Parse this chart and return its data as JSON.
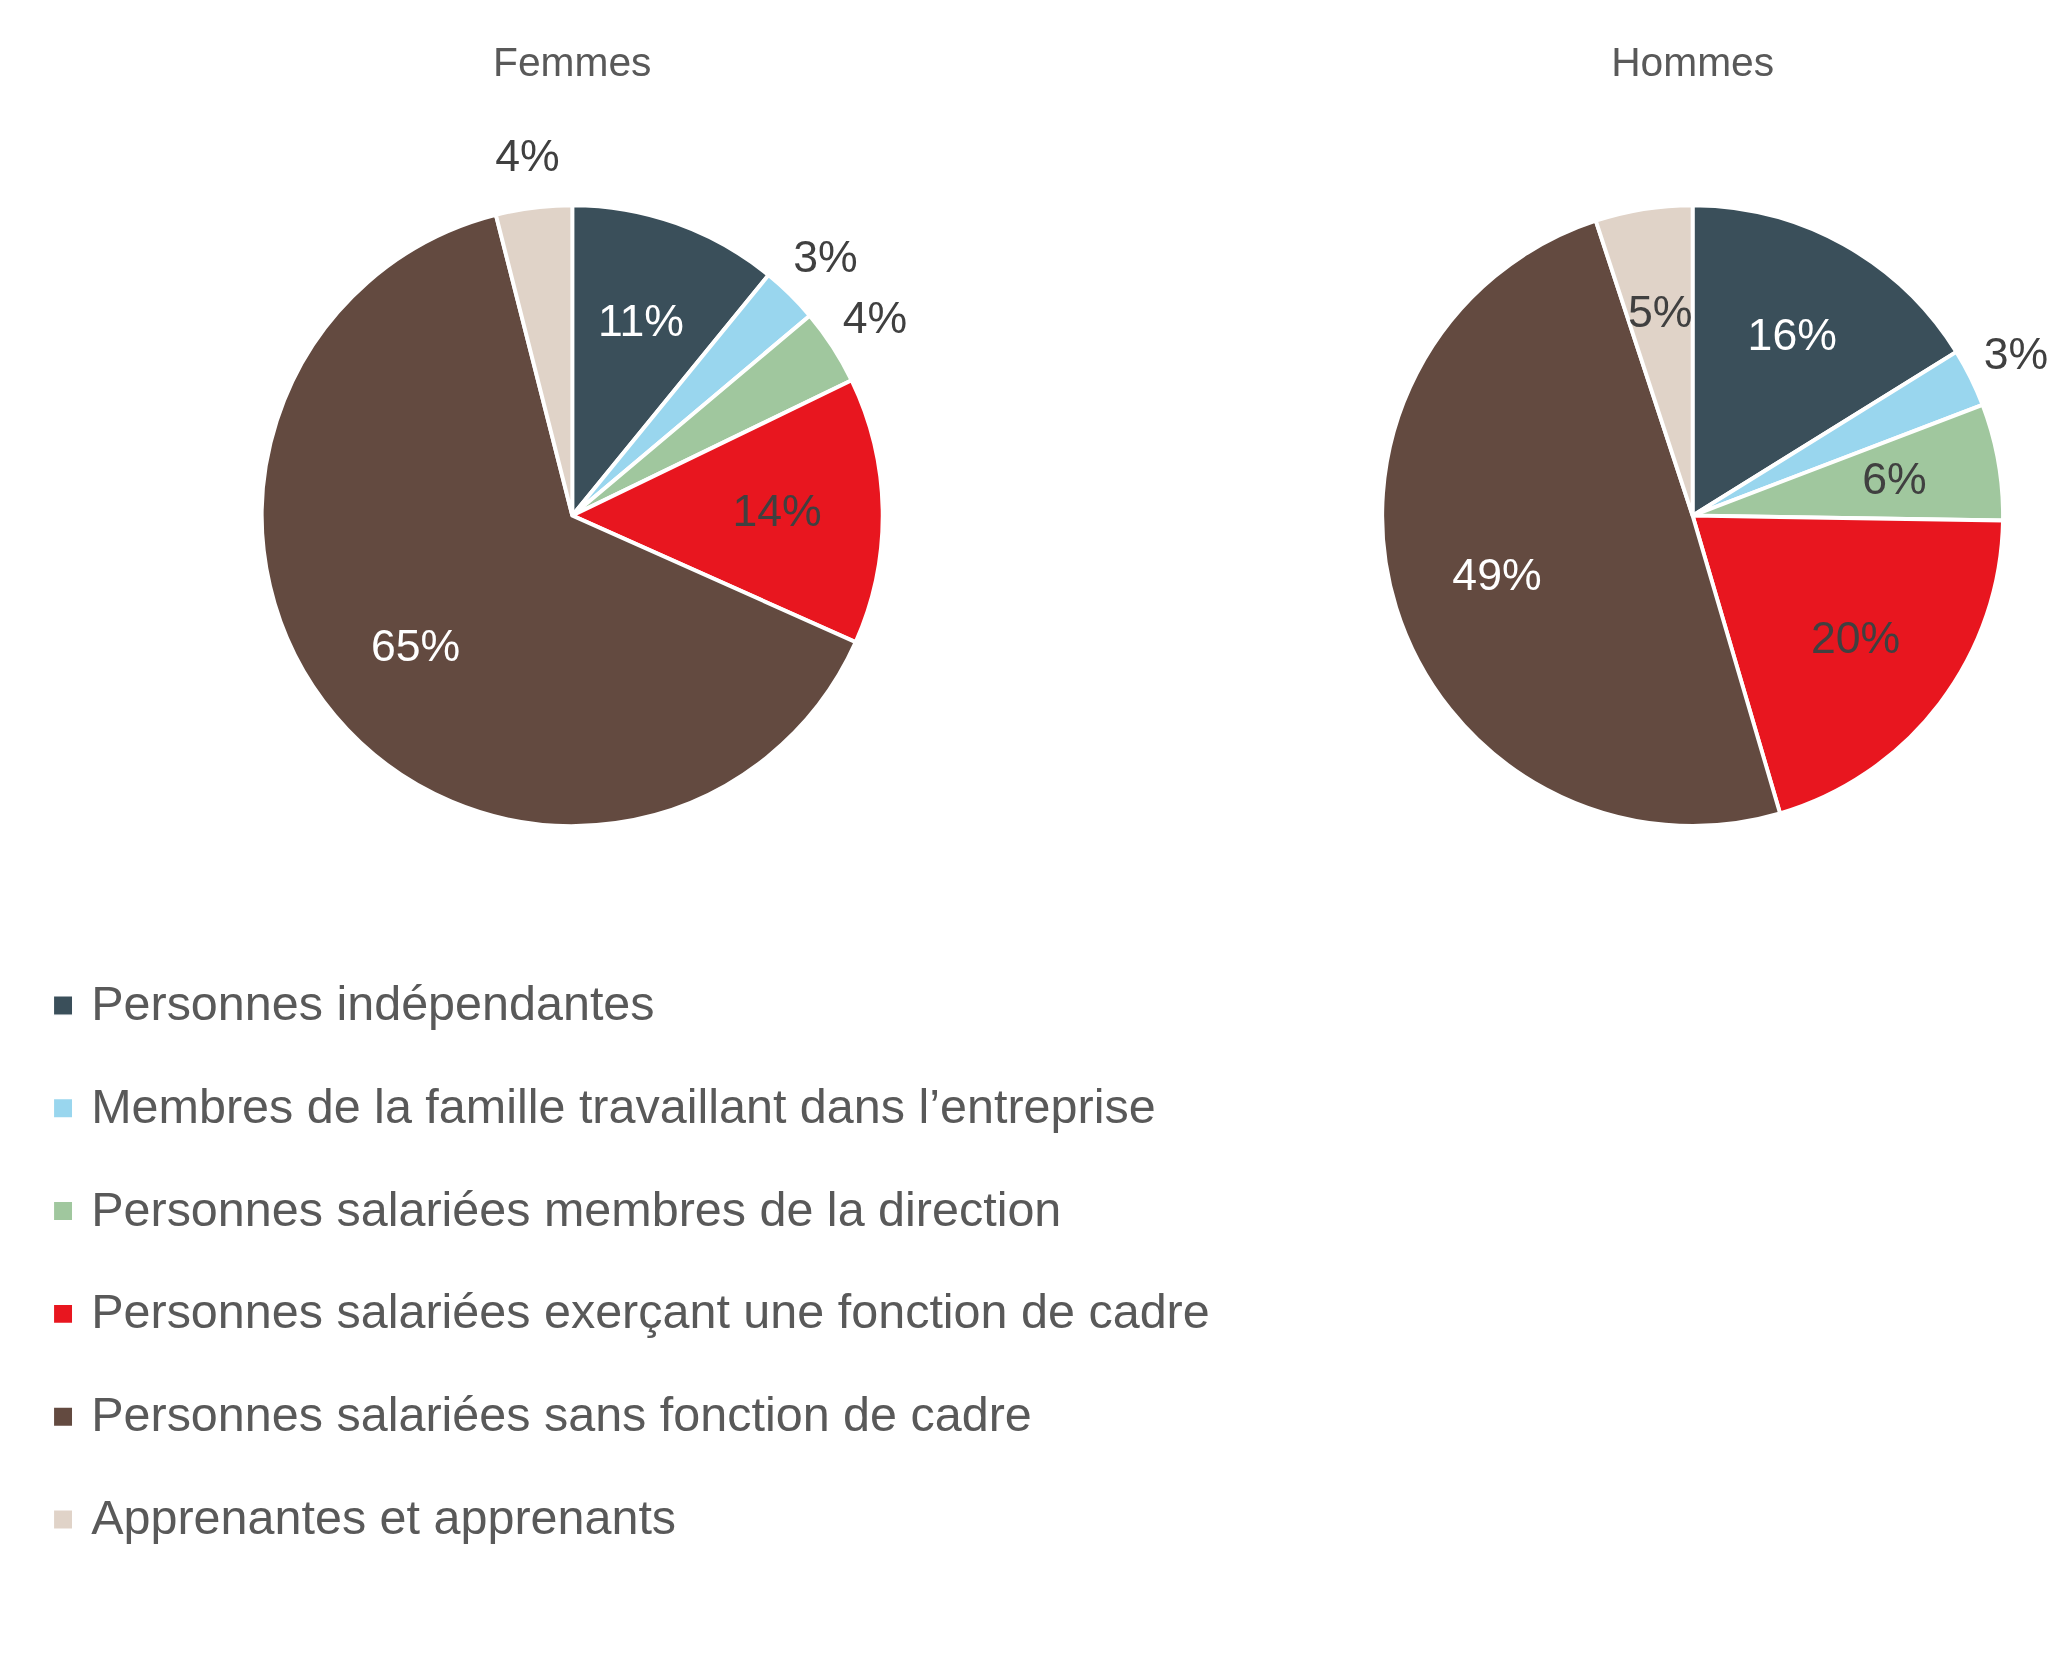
{
  "chart_data": [
    {
      "type": "pie",
      "title": "Femmes",
      "categories": [
        "Personnes indépendantes",
        "Membres de la famille travaillant dans l’entreprise",
        "Personnes salariées membres de la direction",
        "Personnes salariées exerçant une fonction de cadre",
        "Personnes salariées sans fonction de cadre",
        "Apprenantes et apprenants"
      ],
      "values": [
        11,
        3,
        4,
        14,
        65,
        4
      ],
      "value_labels": [
        "11%",
        "3%",
        "4%",
        "14%",
        "65%",
        "4%"
      ],
      "colors": [
        "#3a4f5a",
        "#99d6ee",
        "#a0c79e",
        "#e8161f",
        "#634a40",
        "#e0d3c8"
      ],
      "legend": "bottom"
    },
    {
      "type": "pie",
      "title": "Hommes",
      "categories": [
        null,
        null,
        null,
        null,
        null,
        null
      ],
      "values": [
        16,
        3,
        6,
        20,
        49,
        5
      ],
      "value_labels": [
        "16%",
        "3%",
        "6%",
        "20%",
        "49%",
        "5%"
      ],
      "colors": [
        "#3a4f5a",
        "#99d6ee",
        "#a0c79e",
        "#e8161f",
        "#634a40",
        "#e0d3c8"
      ]
    }
  ]
}
